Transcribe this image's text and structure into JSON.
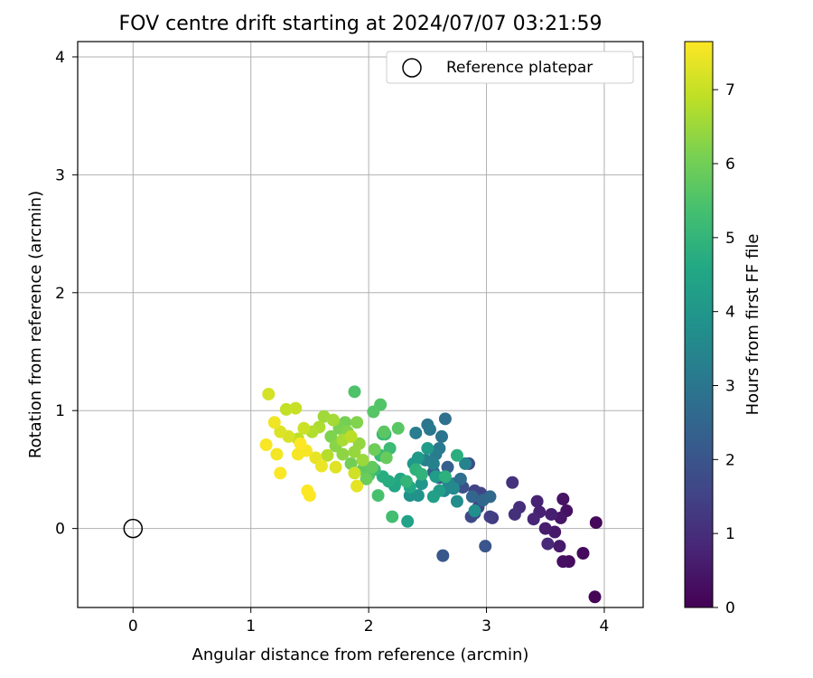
{
  "chart_data": {
    "type": "scatter",
    "title": "FOV centre drift starting at 2024/07/07 03:21:59",
    "xlabel": "Angular distance from reference (arcmin)",
    "ylabel": "Rotation from reference (arcmin)",
    "xlim": [
      -0.47,
      4.33
    ],
    "ylim": [
      -0.67,
      4.13
    ],
    "xticks": [
      0,
      1,
      2,
      3,
      4
    ],
    "yticks": [
      0,
      1,
      2,
      3,
      4
    ],
    "grid": true,
    "legend": {
      "placement": "top-right",
      "entries": [
        "Reference platepar"
      ]
    },
    "reference": {
      "x": 0,
      "y": 0,
      "label": "Reference platepar"
    },
    "colorbar": {
      "label": "Hours from first FF file",
      "colormap": "viridis",
      "range": [
        0,
        7.65
      ],
      "ticks": [
        0,
        1,
        2,
        3,
        4,
        5,
        6,
        7
      ]
    },
    "points": [
      {
        "x": 3.92,
        "y": -0.58,
        "c": 0.1
      },
      {
        "x": 3.93,
        "y": 0.05,
        "c": 0.15
      },
      {
        "x": 3.82,
        "y": -0.21,
        "c": 0.2
      },
      {
        "x": 3.7,
        "y": -0.28,
        "c": 0.25
      },
      {
        "x": 3.65,
        "y": -0.28,
        "c": 0.3
      },
      {
        "x": 3.68,
        "y": 0.15,
        "c": 0.35
      },
      {
        "x": 3.65,
        "y": 0.25,
        "c": 0.4
      },
      {
        "x": 3.63,
        "y": 0.09,
        "c": 0.45
      },
      {
        "x": 3.58,
        "y": -0.03,
        "c": 0.5
      },
      {
        "x": 3.62,
        "y": -0.15,
        "c": 0.55
      },
      {
        "x": 3.5,
        "y": 0.0,
        "c": 0.6
      },
      {
        "x": 3.55,
        "y": 0.12,
        "c": 0.65
      },
      {
        "x": 3.45,
        "y": 0.14,
        "c": 0.7
      },
      {
        "x": 3.43,
        "y": 0.23,
        "c": 0.75
      },
      {
        "x": 3.4,
        "y": 0.08,
        "c": 0.8
      },
      {
        "x": 3.52,
        "y": -0.13,
        "c": 0.9
      },
      {
        "x": 3.28,
        "y": 0.18,
        "c": 1.0
      },
      {
        "x": 3.24,
        "y": 0.12,
        "c": 1.05
      },
      {
        "x": 3.22,
        "y": 0.39,
        "c": 1.1
      },
      {
        "x": 3.05,
        "y": 0.09,
        "c": 1.3
      },
      {
        "x": 3.03,
        "y": 0.1,
        "c": 1.4
      },
      {
        "x": 2.9,
        "y": 0.32,
        "c": 1.5
      },
      {
        "x": 2.95,
        "y": 0.3,
        "c": 1.55
      },
      {
        "x": 2.93,
        "y": 0.18,
        "c": 1.6
      },
      {
        "x": 2.87,
        "y": 0.1,
        "c": 1.7
      },
      {
        "x": 2.9,
        "y": 0.13,
        "c": 1.75
      },
      {
        "x": 2.85,
        "y": 0.55,
        "c": 1.8
      },
      {
        "x": 2.8,
        "y": 0.35,
        "c": 1.9
      },
      {
        "x": 2.99,
        "y": -0.15,
        "c": 2.0
      },
      {
        "x": 2.63,
        "y": -0.23,
        "c": 2.1
      },
      {
        "x": 2.6,
        "y": 0.43,
        "c": 2.2
      },
      {
        "x": 2.67,
        "y": 0.52,
        "c": 2.3
      },
      {
        "x": 2.55,
        "y": 0.48,
        "c": 2.4
      },
      {
        "x": 2.88,
        "y": 0.27,
        "c": 2.5
      },
      {
        "x": 2.97,
        "y": 0.24,
        "c": 2.55
      },
      {
        "x": 3.03,
        "y": 0.27,
        "c": 2.6
      },
      {
        "x": 2.72,
        "y": 0.38,
        "c": 2.7
      },
      {
        "x": 2.78,
        "y": 0.42,
        "c": 2.75
      },
      {
        "x": 2.65,
        "y": 0.93,
        "c": 2.8
      },
      {
        "x": 2.62,
        "y": 0.78,
        "c": 2.9
      },
      {
        "x": 2.5,
        "y": 0.88,
        "c": 3.0
      },
      {
        "x": 2.52,
        "y": 0.84,
        "c": 3.05
      },
      {
        "x": 2.6,
        "y": 0.68,
        "c": 3.1
      },
      {
        "x": 2.57,
        "y": 0.63,
        "c": 3.15
      },
      {
        "x": 2.4,
        "y": 0.81,
        "c": 3.2
      },
      {
        "x": 2.48,
        "y": 0.58,
        "c": 3.3
      },
      {
        "x": 2.55,
        "y": 0.55,
        "c": 3.35
      },
      {
        "x": 2.82,
        "y": 0.55,
        "c": 3.4
      },
      {
        "x": 2.64,
        "y": 0.32,
        "c": 3.5
      },
      {
        "x": 2.68,
        "y": 0.38,
        "c": 3.55
      },
      {
        "x": 2.72,
        "y": 0.34,
        "c": 3.6
      },
      {
        "x": 2.75,
        "y": 0.23,
        "c": 3.7
      },
      {
        "x": 2.9,
        "y": 0.15,
        "c": 3.8
      },
      {
        "x": 2.35,
        "y": 0.28,
        "c": 3.85
      },
      {
        "x": 2.42,
        "y": 0.28,
        "c": 3.9
      },
      {
        "x": 2.45,
        "y": 0.38,
        "c": 4.0
      },
      {
        "x": 2.38,
        "y": 0.55,
        "c": 4.05
      },
      {
        "x": 2.42,
        "y": 0.6,
        "c": 4.1
      },
      {
        "x": 2.5,
        "y": 0.68,
        "c": 4.15
      },
      {
        "x": 2.57,
        "y": 0.44,
        "c": 4.2
      },
      {
        "x": 2.6,
        "y": 0.32,
        "c": 4.25
      },
      {
        "x": 2.55,
        "y": 0.27,
        "c": 4.3
      },
      {
        "x": 2.33,
        "y": 0.06,
        "c": 4.4
      },
      {
        "x": 2.22,
        "y": 0.36,
        "c": 4.5
      },
      {
        "x": 2.27,
        "y": 0.42,
        "c": 4.55
      },
      {
        "x": 2.35,
        "y": 0.35,
        "c": 4.6
      },
      {
        "x": 2.17,
        "y": 0.4,
        "c": 4.7
      },
      {
        "x": 2.12,
        "y": 0.44,
        "c": 4.75
      },
      {
        "x": 2.75,
        "y": 0.62,
        "c": 4.8
      },
      {
        "x": 2.65,
        "y": 0.44,
        "c": 4.85
      },
      {
        "x": 2.4,
        "y": 0.5,
        "c": 4.9
      },
      {
        "x": 2.45,
        "y": 0.46,
        "c": 4.95
      },
      {
        "x": 2.32,
        "y": 0.4,
        "c": 5.0
      },
      {
        "x": 2.12,
        "y": 0.8,
        "c": 5.05
      },
      {
        "x": 2.05,
        "y": 0.5,
        "c": 5.1
      },
      {
        "x": 2.1,
        "y": 0.62,
        "c": 5.15
      },
      {
        "x": 2.18,
        "y": 0.68,
        "c": 5.2
      },
      {
        "x": 2.14,
        "y": 0.8,
        "c": 5.25
      },
      {
        "x": 2.2,
        "y": 0.1,
        "c": 5.3
      },
      {
        "x": 2.08,
        "y": 0.28,
        "c": 5.4
      },
      {
        "x": 2.0,
        "y": 0.45,
        "c": 5.45
      },
      {
        "x": 1.88,
        "y": 1.16,
        "c": 5.5
      },
      {
        "x": 2.1,
        "y": 1.05,
        "c": 5.55
      },
      {
        "x": 2.04,
        "y": 0.99,
        "c": 5.6
      },
      {
        "x": 2.25,
        "y": 0.85,
        "c": 5.65
      },
      {
        "x": 2.13,
        "y": 0.82,
        "c": 5.7
      },
      {
        "x": 1.95,
        "y": 0.5,
        "c": 5.75
      },
      {
        "x": 2.03,
        "y": 0.52,
        "c": 5.8
      },
      {
        "x": 2.15,
        "y": 0.6,
        "c": 5.85
      },
      {
        "x": 1.98,
        "y": 0.42,
        "c": 5.9
      },
      {
        "x": 2.05,
        "y": 0.67,
        "c": 5.95
      },
      {
        "x": 1.85,
        "y": 0.55,
        "c": 6.0
      },
      {
        "x": 1.8,
        "y": 0.9,
        "c": 6.05
      },
      {
        "x": 1.75,
        "y": 0.85,
        "c": 6.1
      },
      {
        "x": 1.68,
        "y": 0.78,
        "c": 6.15
      },
      {
        "x": 1.9,
        "y": 0.9,
        "c": 6.2
      },
      {
        "x": 1.82,
        "y": 0.82,
        "c": 6.25
      },
      {
        "x": 1.72,
        "y": 0.7,
        "c": 6.3
      },
      {
        "x": 1.78,
        "y": 0.63,
        "c": 6.35
      },
      {
        "x": 1.92,
        "y": 0.72,
        "c": 6.4
      },
      {
        "x": 1.88,
        "y": 0.65,
        "c": 6.45
      },
      {
        "x": 1.95,
        "y": 0.58,
        "c": 6.5
      },
      {
        "x": 1.62,
        "y": 0.95,
        "c": 6.55
      },
      {
        "x": 1.7,
        "y": 0.92,
        "c": 6.6
      },
      {
        "x": 1.78,
        "y": 0.75,
        "c": 6.65
      },
      {
        "x": 1.58,
        "y": 0.86,
        "c": 6.7
      },
      {
        "x": 1.52,
        "y": 0.82,
        "c": 6.75
      },
      {
        "x": 1.65,
        "y": 0.62,
        "c": 6.8
      },
      {
        "x": 1.85,
        "y": 0.78,
        "c": 6.85
      },
      {
        "x": 1.4,
        "y": 0.76,
        "c": 6.9
      },
      {
        "x": 1.3,
        "y": 1.01,
        "c": 6.95
      },
      {
        "x": 1.38,
        "y": 1.02,
        "c": 7.0
      },
      {
        "x": 1.45,
        "y": 0.85,
        "c": 7.05
      },
      {
        "x": 1.88,
        "y": 0.47,
        "c": 7.1
      },
      {
        "x": 1.15,
        "y": 1.14,
        "c": 7.15
      },
      {
        "x": 1.32,
        "y": 0.78,
        "c": 7.2
      },
      {
        "x": 1.25,
        "y": 0.82,
        "c": 7.25
      },
      {
        "x": 1.72,
        "y": 0.52,
        "c": 7.3
      },
      {
        "x": 1.9,
        "y": 0.36,
        "c": 7.35
      },
      {
        "x": 1.55,
        "y": 0.6,
        "c": 7.4
      },
      {
        "x": 1.6,
        "y": 0.53,
        "c": 7.45
      },
      {
        "x": 1.2,
        "y": 0.9,
        "c": 7.5
      },
      {
        "x": 1.22,
        "y": 0.63,
        "c": 7.52
      },
      {
        "x": 1.4,
        "y": 0.63,
        "c": 7.55
      },
      {
        "x": 1.47,
        "y": 0.66,
        "c": 7.58
      },
      {
        "x": 1.13,
        "y": 0.71,
        "c": 7.6
      },
      {
        "x": 1.25,
        "y": 0.47,
        "c": 7.62
      },
      {
        "x": 1.48,
        "y": 0.32,
        "c": 7.63
      },
      {
        "x": 1.5,
        "y": 0.28,
        "c": 7.64
      },
      {
        "x": 1.42,
        "y": 0.72,
        "c": 7.65
      }
    ]
  }
}
